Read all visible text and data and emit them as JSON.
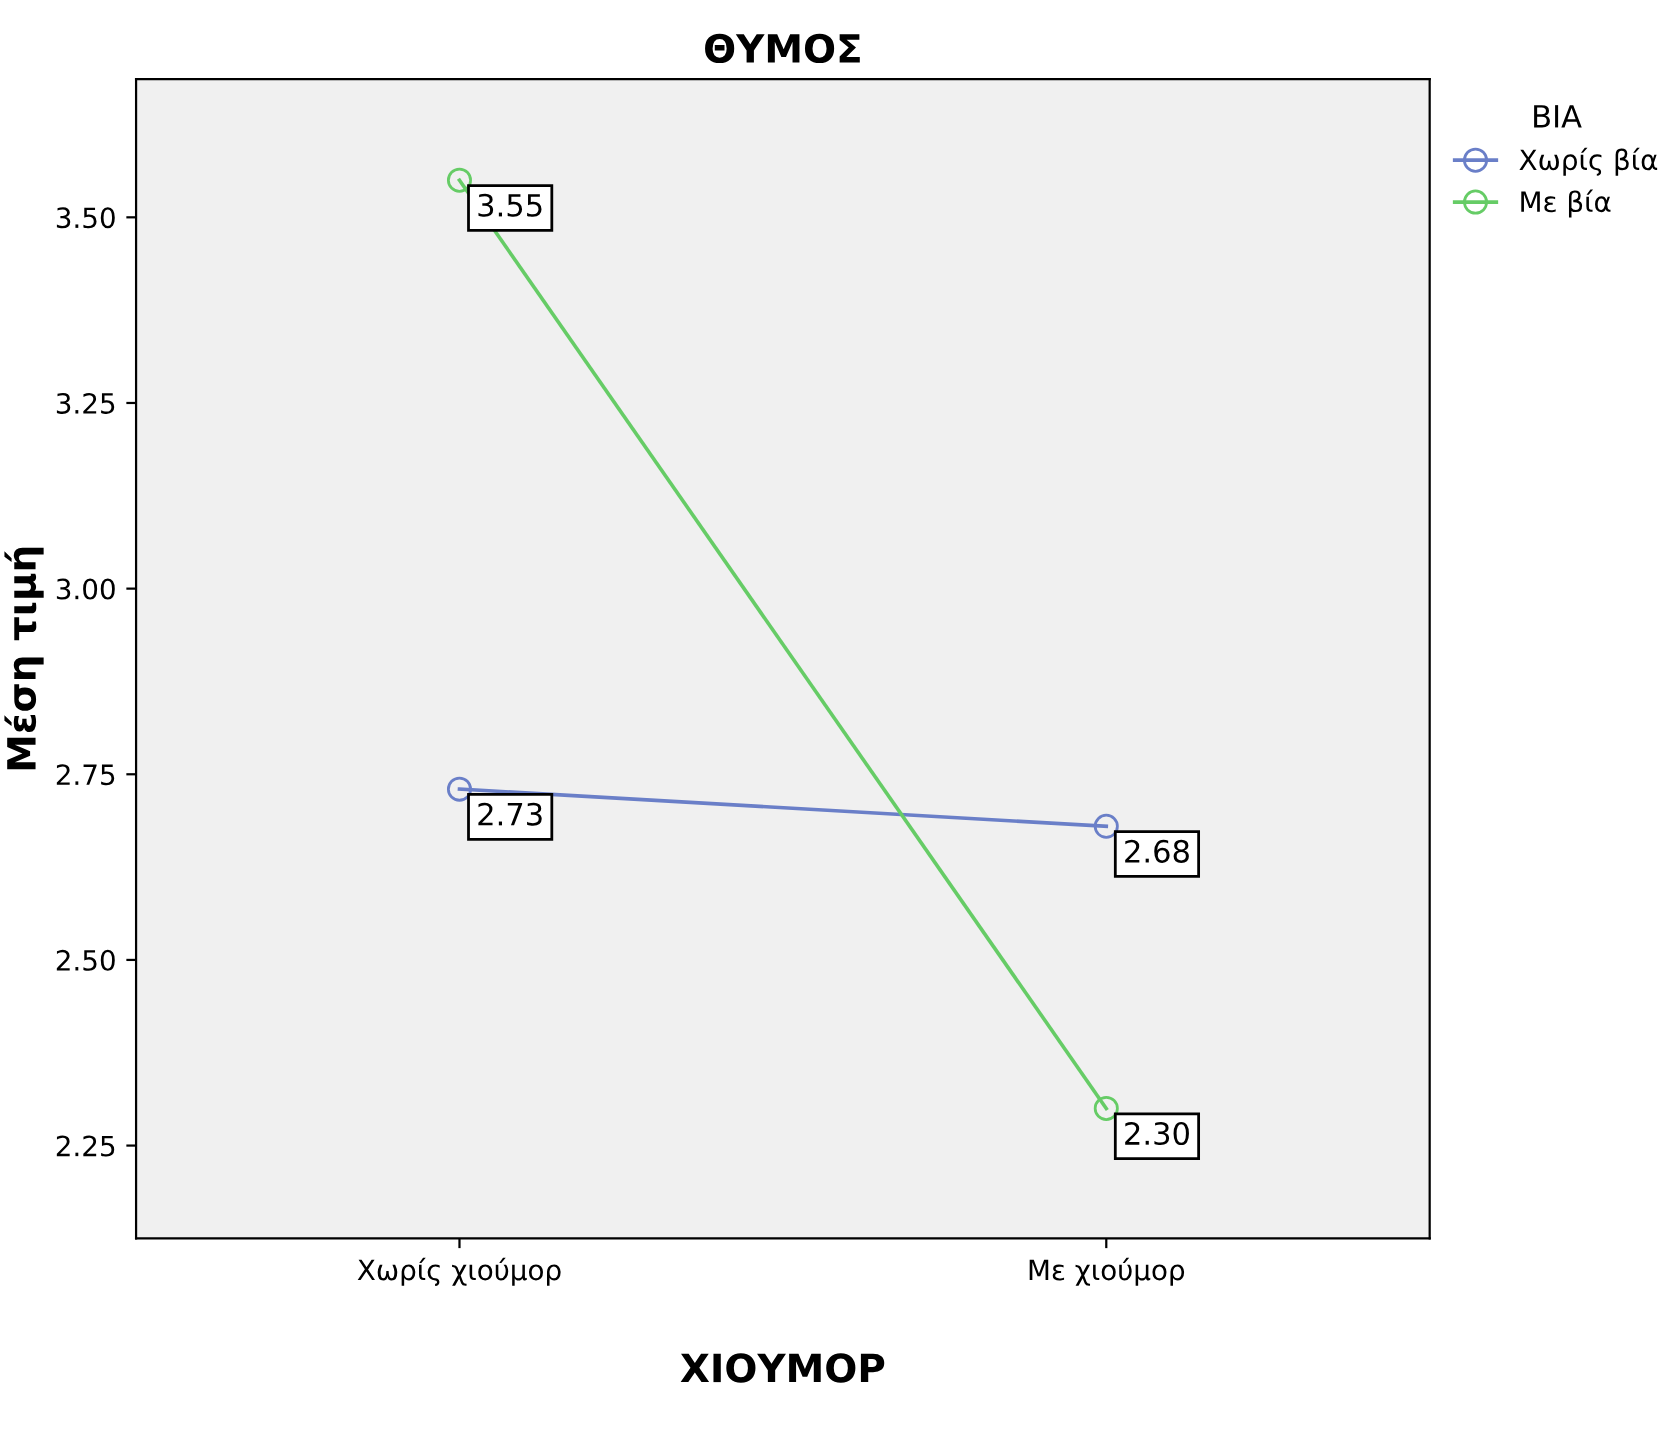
{
  "chart_data": {
    "type": "line",
    "title": "ΘΥΜΟΣ",
    "xlabel": "ΧΙΟΥΜΟΡ",
    "ylabel": "Μέση τιμή",
    "legend_title": "ΒΙΑ",
    "categories": [
      "Χωρίς χιούμορ",
      "Με χιούμορ"
    ],
    "series": [
      {
        "name": "Χωρίς βία",
        "color": "#6a7fc8",
        "values": [
          2.73,
          2.68
        ],
        "value_labels": [
          "2.73",
          "2.68"
        ]
      },
      {
        "name": "Με βία",
        "color": "#66cc66",
        "values": [
          3.55,
          2.3
        ],
        "value_labels": [
          "3.55",
          "2.30"
        ]
      }
    ],
    "ylim": [
      2.125,
      3.686
    ],
    "yticks": [
      {
        "value": 2.25,
        "label": "2.25"
      },
      {
        "value": 2.5,
        "label": "2.50"
      },
      {
        "value": 2.75,
        "label": "2.75"
      },
      {
        "value": 3.0,
        "label": "3.00"
      },
      {
        "value": 3.25,
        "label": "3.25"
      },
      {
        "value": 3.5,
        "label": "3.50"
      }
    ],
    "marker": "circle",
    "line_style": "solid",
    "legend": "top right",
    "grid": false
  }
}
